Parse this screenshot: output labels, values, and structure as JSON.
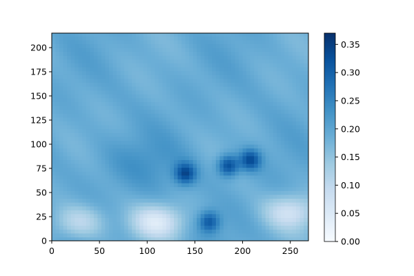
{
  "chart_data": {
    "type": "heatmap",
    "title": "",
    "xlabel": "",
    "ylabel": "",
    "xlim": [
      0,
      269
    ],
    "ylim": [
      0,
      215
    ],
    "x_ticks": [
      0,
      50,
      100,
      150,
      200,
      250
    ],
    "y_ticks": [
      0,
      25,
      50,
      75,
      100,
      125,
      150,
      175,
      200
    ],
    "colormap": "Blues",
    "colorbar": {
      "vmin": 0.0,
      "vmax": 0.37,
      "ticks": [
        "0.00",
        "0.05",
        "0.10",
        "0.15",
        "0.20",
        "0.25",
        "0.30",
        "0.35"
      ]
    },
    "field_summary": {
      "typical_value": 0.19,
      "high_regions": [
        {
          "x": 140,
          "y": 70,
          "value": 0.33
        },
        {
          "x": 185,
          "y": 78,
          "value": 0.34
        },
        {
          "x": 208,
          "y": 84,
          "value": 0.33
        },
        {
          "x": 165,
          "y": 20,
          "value": 0.31
        }
      ],
      "low_regions": [
        {
          "x": 110,
          "y": 20,
          "value": 0.06
        },
        {
          "x": 250,
          "y": 30,
          "value": 0.08
        },
        {
          "x": 30,
          "y": 20,
          "value": 0.1
        }
      ]
    }
  }
}
